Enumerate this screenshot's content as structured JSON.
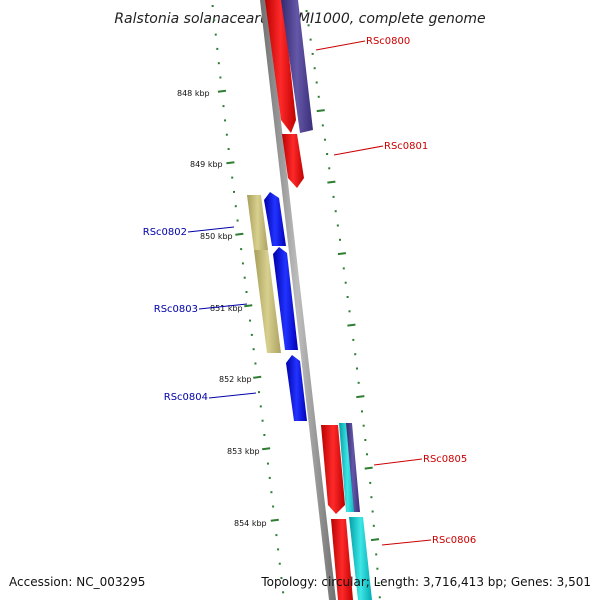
{
  "title": "Ralstonia solanacearum GMI1000, complete genome",
  "accession": "Accession: NC_003295",
  "summary": "Topology: circular; Length: 3,716,413 bp; Genes: 3,501",
  "colors": {
    "red": "#ff0000",
    "slate": "#4a3d8f",
    "blue": "#0000ee",
    "khaki": "#c8be78",
    "cyan": "#00cccc",
    "backbone": "#909090",
    "tick": "#2e7d32",
    "label_red": "#cc0000",
    "label_blue": "#0000aa"
  },
  "kbp_labels": [
    "848 kbp",
    "849 kbp",
    "850 kbp",
    "851 kbp",
    "852 kbp",
    "853 kbp",
    "854 kbp"
  ],
  "genes": [
    {
      "name": "RSc0800",
      "color": "red"
    },
    {
      "name": "RSc0801",
      "color": "red"
    },
    {
      "name": "RSc0802",
      "color": "blue"
    },
    {
      "name": "RSc0803",
      "color": "blue"
    },
    {
      "name": "RSc0804",
      "color": "blue"
    },
    {
      "name": "RSc0805",
      "color": "red"
    },
    {
      "name": "RSc0806",
      "color": "red"
    }
  ]
}
